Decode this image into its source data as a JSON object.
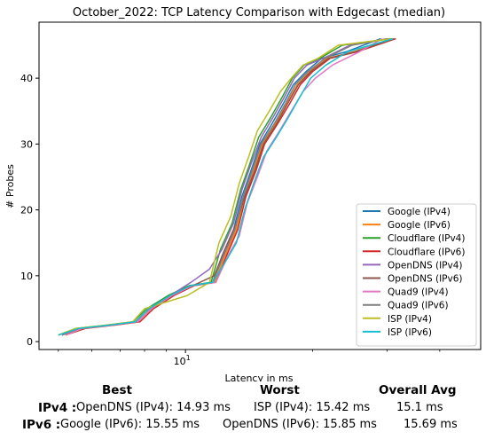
{
  "chart_data": {
    "type": "line",
    "title": "October_2022: TCP Latency Comparison with Edgecast (median)",
    "xlabel": "Latency in ms",
    "ylabel": "# Probes",
    "xscale": "log",
    "xlim": [
      4.5,
      50
    ],
    "ylim": [
      -1.2,
      48.5
    ],
    "x_ticks": [
      10
    ],
    "x_tick_labels": [
      "10^1"
    ],
    "y_ticks": [
      0,
      10,
      20,
      30,
      40
    ],
    "y_tick_labels": [
      "0",
      "10",
      "20",
      "30",
      "40"
    ],
    "grid": false,
    "legend_position": "lower-right",
    "series": [
      {
        "name": "Google (IPv4)",
        "color": "#1f77b4",
        "points": [
          [
            5.1,
            1
          ],
          [
            5.6,
            2
          ],
          [
            6.6,
            2.5
          ],
          [
            7.6,
            3
          ],
          [
            8.2,
            5
          ],
          [
            9.2,
            7
          ],
          [
            10.3,
            8.5
          ],
          [
            11.6,
            9
          ],
          [
            12.2,
            13
          ],
          [
            13.0,
            17
          ],
          [
            13.6,
            22
          ],
          [
            14.3,
            26
          ],
          [
            15.0,
            30
          ],
          [
            16.0,
            33
          ],
          [
            17.0,
            36
          ],
          [
            18.0,
            39
          ],
          [
            19.3,
            41
          ],
          [
            21.0,
            43
          ],
          [
            24.0,
            44
          ],
          [
            29.0,
            46
          ]
        ]
      },
      {
        "name": "Google (IPv6)",
        "color": "#ff7f0e",
        "points": [
          [
            5.2,
            1
          ],
          [
            5.7,
            2
          ],
          [
            6.7,
            2.5
          ],
          [
            7.7,
            3
          ],
          [
            8.3,
            5
          ],
          [
            9.3,
            7
          ],
          [
            10.4,
            8.5
          ],
          [
            11.7,
            9
          ],
          [
            12.4,
            13
          ],
          [
            13.2,
            17
          ],
          [
            13.8,
            22
          ],
          [
            14.5,
            26
          ],
          [
            15.2,
            30
          ],
          [
            16.3,
            33
          ],
          [
            17.3,
            36
          ],
          [
            18.4,
            39
          ],
          [
            19.7,
            41
          ],
          [
            21.6,
            43
          ],
          [
            25.0,
            44
          ],
          [
            31.0,
            46
          ]
        ]
      },
      {
        "name": "Cloudflare (IPv4)",
        "color": "#2ca02c",
        "points": [
          [
            5.0,
            1
          ],
          [
            5.5,
            2
          ],
          [
            6.5,
            2.5
          ],
          [
            7.5,
            3
          ],
          [
            8.1,
            5
          ],
          [
            9.1,
            7
          ],
          [
            10.2,
            8.5
          ],
          [
            11.5,
            9
          ],
          [
            12.1,
            14
          ],
          [
            12.9,
            18
          ],
          [
            13.5,
            23
          ],
          [
            14.2,
            27
          ],
          [
            14.9,
            31
          ],
          [
            15.9,
            34
          ],
          [
            16.9,
            37
          ],
          [
            17.9,
            40
          ],
          [
            19.1,
            42
          ],
          [
            20.8,
            43
          ],
          [
            23.5,
            45
          ],
          [
            30.5,
            46
          ]
        ]
      },
      {
        "name": "Cloudflare (IPv6)",
        "color": "#d62728",
        "points": [
          [
            5.2,
            1
          ],
          [
            5.8,
            2
          ],
          [
            6.8,
            2.5
          ],
          [
            7.8,
            3
          ],
          [
            8.4,
            5
          ],
          [
            9.4,
            7
          ],
          [
            10.5,
            8.5
          ],
          [
            11.8,
            9
          ],
          [
            12.5,
            13
          ],
          [
            13.3,
            17
          ],
          [
            13.9,
            22
          ],
          [
            14.7,
            26
          ],
          [
            15.4,
            30
          ],
          [
            16.5,
            33
          ],
          [
            17.6,
            36
          ],
          [
            18.7,
            39
          ],
          [
            20.0,
            41
          ],
          [
            22.0,
            43
          ],
          [
            25.5,
            44
          ],
          [
            31.5,
            46
          ]
        ]
      },
      {
        "name": "OpenDNS (IPv4)",
        "color": "#9467bd",
        "points": [
          [
            5.1,
            1
          ],
          [
            5.6,
            2
          ],
          [
            6.6,
            2.5
          ],
          [
            7.6,
            3
          ],
          [
            8.2,
            5
          ],
          [
            9.2,
            7
          ],
          [
            10.3,
            9
          ],
          [
            11.4,
            11
          ],
          [
            12.2,
            14
          ],
          [
            13.0,
            18
          ],
          [
            13.6,
            23
          ],
          [
            14.3,
            27
          ],
          [
            15.1,
            31
          ],
          [
            16.1,
            34
          ],
          [
            17.1,
            37
          ],
          [
            18.1,
            40
          ],
          [
            19.4,
            42
          ],
          [
            21.2,
            43
          ],
          [
            24.5,
            45
          ],
          [
            30.0,
            46
          ]
        ]
      },
      {
        "name": "OpenDNS (IPv6)",
        "color": "#8c564b",
        "points": [
          [
            5.1,
            1
          ],
          [
            5.7,
            2
          ],
          [
            6.7,
            2.5
          ],
          [
            7.7,
            3
          ],
          [
            8.3,
            5
          ],
          [
            9.3,
            7
          ],
          [
            10.4,
            8.5
          ],
          [
            11.7,
            10
          ],
          [
            12.4,
            14
          ],
          [
            13.2,
            18
          ],
          [
            13.8,
            22
          ],
          [
            14.6,
            26
          ],
          [
            15.3,
            30
          ],
          [
            16.4,
            33
          ],
          [
            17.4,
            36
          ],
          [
            18.5,
            39
          ],
          [
            19.8,
            41
          ],
          [
            21.8,
            43
          ],
          [
            25.2,
            44
          ],
          [
            31.2,
            46
          ]
        ]
      },
      {
        "name": "Quad9 (IPv4)",
        "color": "#e377c2",
        "points": [
          [
            5.2,
            1
          ],
          [
            5.7,
            2
          ],
          [
            6.7,
            2.5
          ],
          [
            7.7,
            3
          ],
          [
            8.3,
            5
          ],
          [
            9.3,
            7
          ],
          [
            10.4,
            8.5
          ],
          [
            11.8,
            9
          ],
          [
            12.6,
            13
          ],
          [
            13.4,
            16
          ],
          [
            14.0,
            21
          ],
          [
            14.8,
            25
          ],
          [
            15.6,
            29
          ],
          [
            16.7,
            32
          ],
          [
            17.8,
            35
          ],
          [
            19.0,
            38
          ],
          [
            20.3,
            40
          ],
          [
            22.3,
            42
          ],
          [
            25.8,
            44
          ],
          [
            29.2,
            46
          ]
        ]
      },
      {
        "name": "Quad9 (IPv6)",
        "color": "#7f7f7f",
        "points": [
          [
            5.1,
            1
          ],
          [
            5.6,
            2
          ],
          [
            6.6,
            2.5
          ],
          [
            7.6,
            3
          ],
          [
            8.2,
            5
          ],
          [
            9.2,
            7
          ],
          [
            10.3,
            8.5
          ],
          [
            11.6,
            9
          ],
          [
            12.3,
            13
          ],
          [
            13.1,
            17
          ],
          [
            13.7,
            22
          ],
          [
            14.4,
            26
          ],
          [
            15.1,
            30
          ],
          [
            16.2,
            33
          ],
          [
            17.2,
            36
          ],
          [
            18.2,
            39
          ],
          [
            19.5,
            41
          ],
          [
            21.4,
            43
          ],
          [
            24.8,
            45
          ],
          [
            30.3,
            46
          ]
        ]
      },
      {
        "name": "ISP (IPv4)",
        "color": "#bcbd22",
        "points": [
          [
            5.0,
            1
          ],
          [
            5.5,
            2
          ],
          [
            6.5,
            2.5
          ],
          [
            7.5,
            3
          ],
          [
            8.0,
            5
          ],
          [
            9.0,
            6
          ],
          [
            10.1,
            7
          ],
          [
            11.4,
            9
          ],
          [
            12.0,
            15
          ],
          [
            12.8,
            19
          ],
          [
            13.4,
            24
          ],
          [
            14.1,
            28
          ],
          [
            14.8,
            32
          ],
          [
            15.8,
            35
          ],
          [
            16.8,
            38
          ],
          [
            17.8,
            40
          ],
          [
            19.0,
            42
          ],
          [
            20.6,
            43
          ],
          [
            23.0,
            45
          ],
          [
            30.8,
            46
          ]
        ]
      },
      {
        "name": "ISP (IPv6)",
        "color": "#17becf",
        "points": [
          [
            5.0,
            1
          ],
          [
            5.6,
            2
          ],
          [
            6.6,
            2.5
          ],
          [
            7.6,
            3
          ],
          [
            8.2,
            5
          ],
          [
            9.2,
            7
          ],
          [
            10.3,
            8.5
          ],
          [
            11.6,
            9
          ],
          [
            12.4,
            12
          ],
          [
            13.2,
            15
          ],
          [
            13.8,
            20
          ],
          [
            14.5,
            24
          ],
          [
            15.3,
            28
          ],
          [
            16.4,
            31
          ],
          [
            17.5,
            34
          ],
          [
            18.6,
            37
          ],
          [
            19.8,
            40
          ],
          [
            21.5,
            42
          ],
          [
            24.2,
            44
          ],
          [
            31.0,
            46
          ]
        ]
      }
    ]
  },
  "stats": {
    "headers": {
      "best": "Best",
      "worst": "Worst",
      "overall": "Overall Avg"
    },
    "rows": [
      {
        "label": "IPv4 :",
        "best": "OpenDNS (IPv4): 14.93 ms",
        "worst": "ISP (IPv4): 15.42 ms",
        "overall": "15.1 ms"
      },
      {
        "label": "IPv6 :",
        "best": "Google (IPv6): 15.55 ms",
        "worst": "OpenDNS (IPv6): 15.85 ms",
        "overall": "15.69 ms"
      }
    ]
  }
}
